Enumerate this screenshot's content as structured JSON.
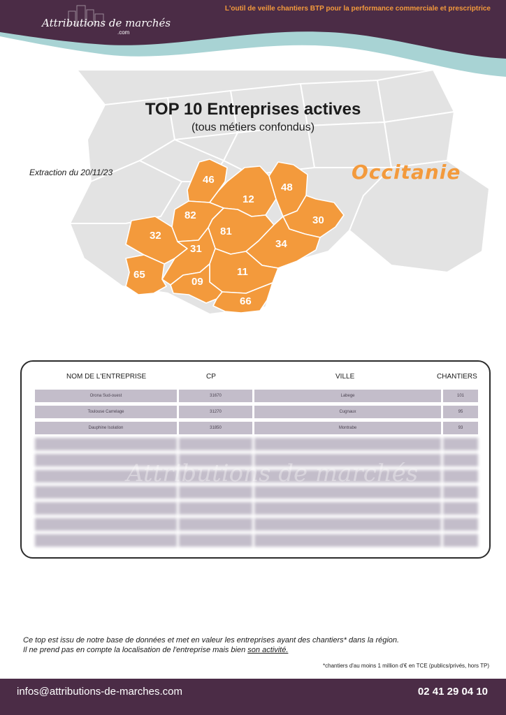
{
  "header": {
    "logo_main": "Attributions de marchés",
    "logo_sub": ".com",
    "tagline": "L'outil de veille chantiers BTP pour la performance commerciale et prescriptrice"
  },
  "main": {
    "title": "TOP 10 Entreprises actives",
    "subtitle": "(tous métiers confondus)",
    "extraction": "Extraction du 20/11/23",
    "region": "Occitanie"
  },
  "map": {
    "departments": [
      "46",
      "12",
      "48",
      "82",
      "30",
      "32",
      "81",
      "34",
      "31",
      "65",
      "11",
      "09",
      "66"
    ],
    "colors": {
      "highlight": "#f39a3c",
      "background_land": "#e3e3e3",
      "borders": "#ffffff"
    }
  },
  "table": {
    "headers": {
      "name": "NOM DE L'ENTREPRISE",
      "cp": "CP",
      "ville": "VILLE",
      "chantiers": "CHANTIERS"
    },
    "rows": [
      {
        "name": "Orona Sud-ouest",
        "cp": "31670",
        "ville": "Labege",
        "chantiers": "101"
      },
      {
        "name": "Toulouse Carrelage",
        "cp": "31270",
        "ville": "Cugnaux",
        "chantiers": "95"
      },
      {
        "name": "Dauphine Isolation",
        "cp": "31850",
        "ville": "Montrabe",
        "chantiers": "93"
      }
    ],
    "watermark": "Attributions de marchés"
  },
  "note": {
    "line1": "Ce top est issu de notre base de données et met en valeur les entreprises ayant des chantiers* dans la région.",
    "line2": "Il ne prend pas en compte la localisation de l'entreprise mais bien",
    "line2_link": "son activité.",
    "footnote": "*chantiers d'au moins 1 million d'€ en TCE (publics/privés, hors TP)"
  },
  "footer": {
    "email": "infos@attributions-de-marches.com",
    "phone": "02 41 29 04 10"
  },
  "colors": {
    "primary_purple": "#4b2c46",
    "accent_orange": "#f39a3c",
    "accent_teal": "#a8d3d4",
    "row_fill": "#c3bdca"
  }
}
